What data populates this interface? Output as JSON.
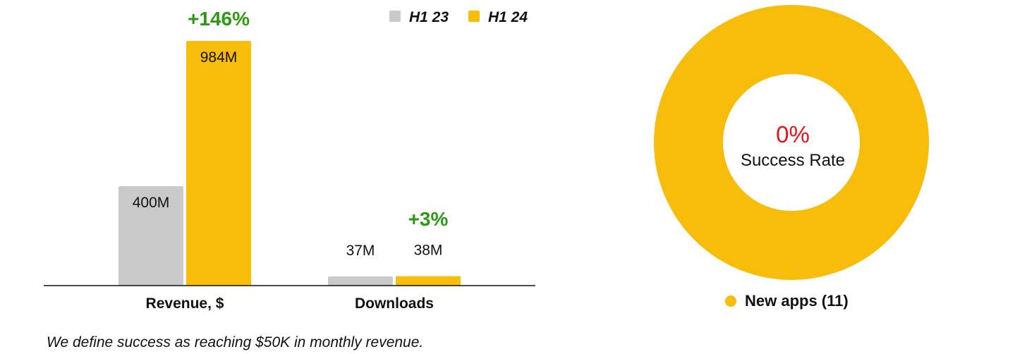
{
  "colors": {
    "h1_23": "#c9c9c9",
    "h1_24": "#f8bc0a",
    "growth": "#2e9a14",
    "success_rate": "#e8141b",
    "text": "#111111"
  },
  "chart_data": [
    {
      "type": "bar",
      "categories": [
        "Revenue, $",
        "Downloads"
      ],
      "series": [
        {
          "name": "H1 23",
          "values": [
            400,
            37
          ],
          "labels": [
            "400M",
            "37M"
          ]
        },
        {
          "name": "H1 24",
          "values": [
            984,
            38
          ],
          "labels": [
            "984M",
            "38M"
          ]
        }
      ],
      "growth_labels": [
        "+146%",
        "+3%"
      ],
      "ylim": [
        0,
        984
      ],
      "legend_position": "top-right",
      "grid": false
    },
    {
      "type": "pie",
      "variant": "donut",
      "labels": [
        "New apps (11)"
      ],
      "values": [
        11
      ],
      "center_value": "0%",
      "center_label": "Success Rate",
      "legend_position": "bottom"
    }
  ],
  "footnote": "We define success as reaching $50K in monthly revenue."
}
